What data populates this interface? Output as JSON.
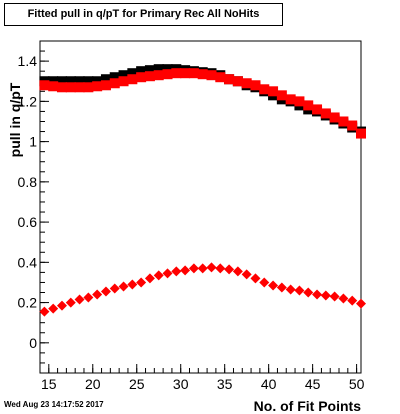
{
  "title": "Fitted pull in q/pT for Primary Rec All NoHits",
  "timestamp": "Wed Aug 23 14:17:52 2017",
  "chart_data": {
    "type": "scatter",
    "title": "Fitted pull in q/pT for Primary Rec All NoHits",
    "xlabel": "No. of Fit Points",
    "ylabel": "pull in q/pT",
    "xlim": [
      14,
      50.5
    ],
    "ylim": [
      -0.15,
      1.5
    ],
    "xticks": [
      15,
      20,
      25,
      30,
      35,
      40,
      45,
      50
    ],
    "yticks": [
      0,
      0.2,
      0.4,
      0.6,
      0.8,
      1,
      1.2,
      1.4
    ],
    "ytick_labels": [
      "0",
      "0.2",
      "0.4",
      "0.6",
      "0.8",
      "1",
      "1.2",
      "1.4"
    ],
    "grid": false,
    "series": [
      {
        "color": "#000000",
        "marker": "square",
        "x": [
          14.5,
          15.5,
          16.5,
          17.5,
          18.5,
          19.5,
          20.5,
          21.5,
          22.5,
          23.5,
          24.5,
          25.5,
          26.5,
          27.5,
          28.5,
          29.5,
          30.5,
          31.5,
          32.5,
          33.5,
          34.5,
          35.5,
          36.5,
          37.5,
          38.5,
          39.5,
          40.5,
          41.5,
          42.5,
          43.5,
          44.5,
          45.5,
          46.5,
          47.5,
          48.5,
          49.5,
          50.5
        ],
        "y": [
          1.3,
          1.3,
          1.3,
          1.3,
          1.3,
          1.3,
          1.3,
          1.31,
          1.32,
          1.33,
          1.34,
          1.35,
          1.355,
          1.36,
          1.36,
          1.36,
          1.355,
          1.35,
          1.345,
          1.34,
          1.33,
          1.31,
          1.3,
          1.28,
          1.27,
          1.25,
          1.23,
          1.21,
          1.2,
          1.18,
          1.16,
          1.15,
          1.13,
          1.11,
          1.09,
          1.07,
          1.05
        ]
      },
      {
        "color": "#ff0000",
        "marker": "square",
        "x": [
          14.5,
          15.5,
          16.5,
          17.5,
          18.5,
          19.5,
          20.5,
          21.5,
          22.5,
          23.5,
          24.5,
          25.5,
          26.5,
          27.5,
          28.5,
          29.5,
          30.5,
          31.5,
          32.5,
          33.5,
          34.5,
          35.5,
          36.5,
          37.5,
          38.5,
          39.5,
          40.5,
          41.5,
          42.5,
          43.5,
          44.5,
          45.5,
          46.5,
          47.5,
          48.5,
          49.5,
          50.5
        ],
        "y": [
          1.28,
          1.275,
          1.27,
          1.27,
          1.27,
          1.27,
          1.275,
          1.28,
          1.29,
          1.3,
          1.31,
          1.32,
          1.325,
          1.33,
          1.335,
          1.34,
          1.34,
          1.34,
          1.335,
          1.33,
          1.32,
          1.31,
          1.3,
          1.29,
          1.28,
          1.26,
          1.25,
          1.23,
          1.21,
          1.2,
          1.18,
          1.16,
          1.14,
          1.12,
          1.1,
          1.08,
          1.04
        ]
      },
      {
        "color": "#ff0000",
        "marker": "diamond",
        "x": [
          14.5,
          15.5,
          16.5,
          17.5,
          18.5,
          19.5,
          20.5,
          21.5,
          22.5,
          23.5,
          24.5,
          25.5,
          26.5,
          27.5,
          28.5,
          29.5,
          30.5,
          31.5,
          32.5,
          33.5,
          34.5,
          35.5,
          36.5,
          37.5,
          38.5,
          39.5,
          40.5,
          41.5,
          42.5,
          43.5,
          44.5,
          45.5,
          46.5,
          47.5,
          48.5,
          49.5,
          50.5
        ],
        "y": [
          0.155,
          0.17,
          0.185,
          0.2,
          0.215,
          0.225,
          0.24,
          0.255,
          0.27,
          0.28,
          0.29,
          0.3,
          0.32,
          0.335,
          0.345,
          0.355,
          0.36,
          0.37,
          0.37,
          0.375,
          0.37,
          0.365,
          0.355,
          0.34,
          0.32,
          0.3,
          0.285,
          0.275,
          0.265,
          0.26,
          0.25,
          0.24,
          0.235,
          0.23,
          0.22,
          0.21,
          0.195
        ]
      }
    ]
  }
}
